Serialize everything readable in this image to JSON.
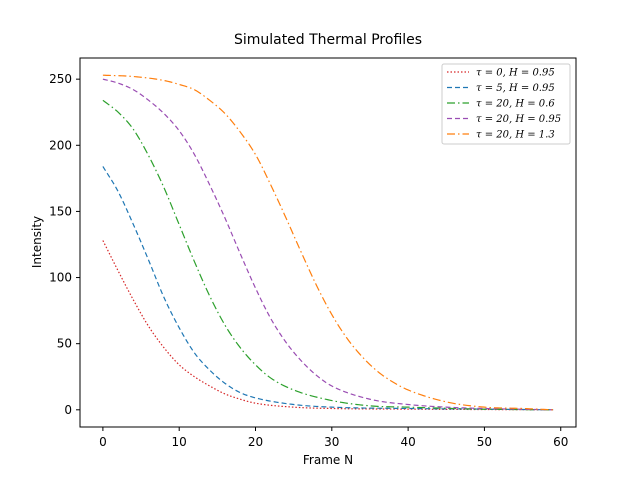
{
  "chart_data": {
    "type": "line",
    "title": "Simulated Thermal Profiles",
    "xlabel": "Frame N",
    "ylabel": "Intensity",
    "xlim": [
      -3,
      62
    ],
    "ylim": [
      -13,
      266
    ],
    "xticks": [
      0,
      10,
      20,
      30,
      40,
      50,
      60
    ],
    "yticks": [
      0,
      50,
      100,
      150,
      200,
      250
    ],
    "grid": false,
    "legend_position": "top-right",
    "x_range": [
      0,
      59
    ],
    "series": [
      {
        "name": "τ = 0, H = 0.95",
        "color": "#d62728",
        "dash": "1.5,2",
        "points": [
          [
            0,
            128
          ],
          [
            2,
            105
          ],
          [
            4,
            83
          ],
          [
            6,
            63
          ],
          [
            8,
            47
          ],
          [
            10,
            34
          ],
          [
            12,
            25
          ],
          [
            14,
            18
          ],
          [
            16,
            12
          ],
          [
            18,
            8
          ],
          [
            20,
            5
          ],
          [
            25,
            2
          ],
          [
            30,
            1
          ],
          [
            40,
            0.5
          ],
          [
            50,
            0.2
          ],
          [
            59,
            0
          ]
        ]
      },
      {
        "name": "τ = 5, H = 0.95",
        "color": "#1f77b4",
        "dash": "5,3",
        "points": [
          [
            0,
            184
          ],
          [
            2,
            165
          ],
          [
            4,
            140
          ],
          [
            6,
            113
          ],
          [
            8,
            85
          ],
          [
            10,
            62
          ],
          [
            12,
            43
          ],
          [
            14,
            30
          ],
          [
            16,
            20
          ],
          [
            18,
            13
          ],
          [
            20,
            9
          ],
          [
            25,
            4
          ],
          [
            30,
            2
          ],
          [
            40,
            1
          ],
          [
            50,
            0.5
          ],
          [
            59,
            0
          ]
        ]
      },
      {
        "name": "τ = 20, H = 0.6",
        "color": "#2ca02c",
        "dash": "8,3,1.5,3",
        "points": [
          [
            0,
            234
          ],
          [
            2,
            225
          ],
          [
            4,
            212
          ],
          [
            6,
            192
          ],
          [
            8,
            168
          ],
          [
            10,
            140
          ],
          [
            12,
            112
          ],
          [
            14,
            86
          ],
          [
            16,
            64
          ],
          [
            18,
            47
          ],
          [
            20,
            34
          ],
          [
            22,
            24
          ],
          [
            25,
            15
          ],
          [
            30,
            7
          ],
          [
            35,
            3
          ],
          [
            40,
            2
          ],
          [
            50,
            0.5
          ],
          [
            59,
            0
          ]
        ]
      },
      {
        "name": "τ = 20, H = 0.95",
        "color": "#9a4db3",
        "dash": "5,3",
        "points": [
          [
            0,
            250
          ],
          [
            2,
            247
          ],
          [
            4,
            242
          ],
          [
            6,
            234
          ],
          [
            8,
            224
          ],
          [
            10,
            211
          ],
          [
            12,
            193
          ],
          [
            14,
            170
          ],
          [
            16,
            145
          ],
          [
            18,
            118
          ],
          [
            20,
            92
          ],
          [
            22,
            69
          ],
          [
            24,
            51
          ],
          [
            26,
            37
          ],
          [
            28,
            26
          ],
          [
            30,
            18
          ],
          [
            35,
            8
          ],
          [
            40,
            4
          ],
          [
            45,
            2
          ],
          [
            50,
            1
          ],
          [
            59,
            0
          ]
        ]
      },
      {
        "name": "τ = 20, H = 1.3",
        "color": "#ff7f0e",
        "dash": "8,3,1.5,3",
        "points": [
          [
            0,
            253
          ],
          [
            4,
            252
          ],
          [
            8,
            249
          ],
          [
            10,
            246
          ],
          [
            12,
            242
          ],
          [
            14,
            234
          ],
          [
            16,
            224
          ],
          [
            18,
            210
          ],
          [
            20,
            193
          ],
          [
            22,
            170
          ],
          [
            24,
            145
          ],
          [
            26,
            119
          ],
          [
            28,
            94
          ],
          [
            30,
            72
          ],
          [
            32,
            54
          ],
          [
            34,
            40
          ],
          [
            36,
            29
          ],
          [
            38,
            21
          ],
          [
            40,
            15
          ],
          [
            45,
            6
          ],
          [
            50,
            2
          ],
          [
            55,
            1
          ],
          [
            59,
            0
          ]
        ]
      }
    ]
  }
}
